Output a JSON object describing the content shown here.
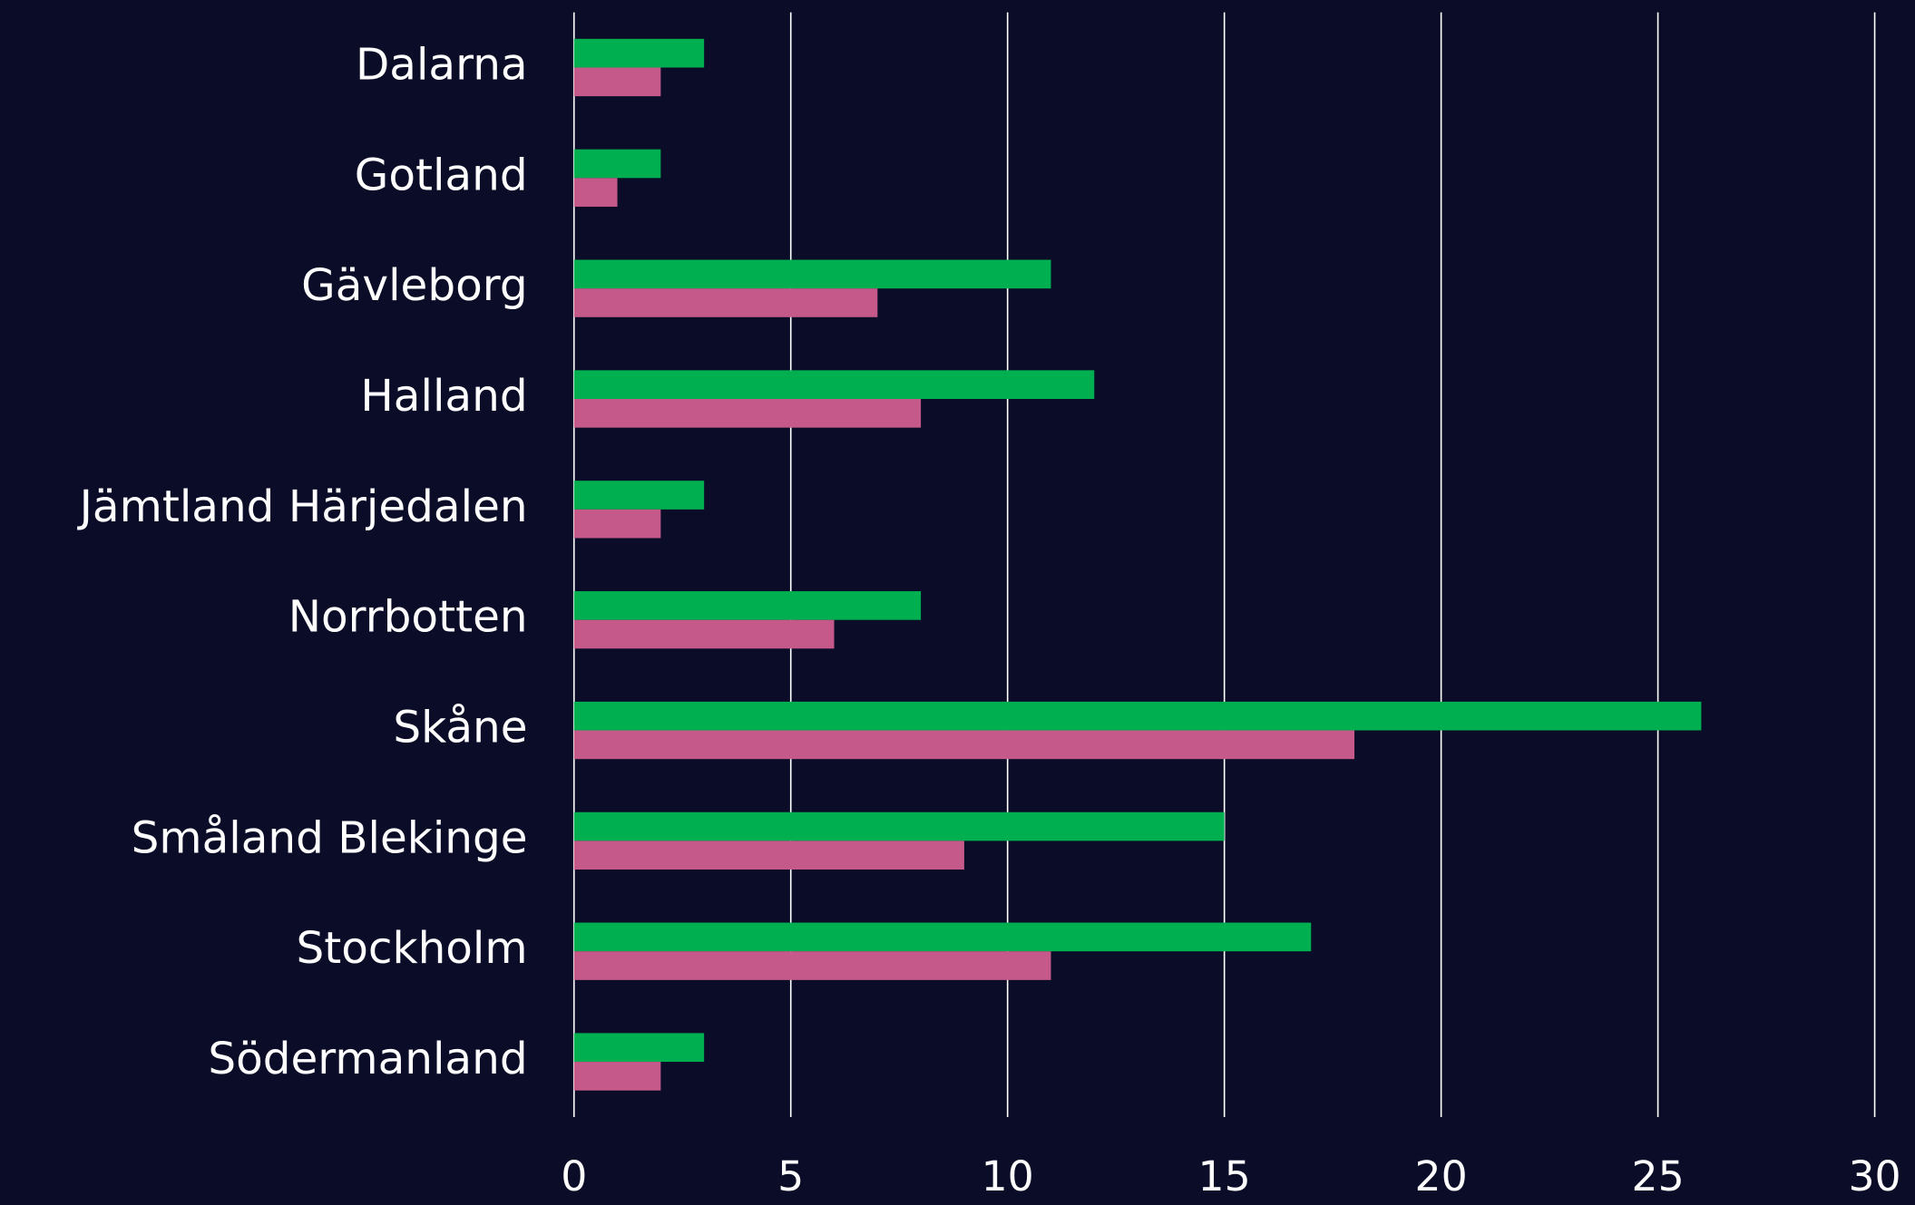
{
  "chart_data": {
    "type": "bar",
    "orientation": "horizontal",
    "categories": [
      "Dalarna",
      "Gotland",
      "Gävleborg",
      "Halland",
      "Jämtland Härjedalen",
      "Norrbotten",
      "Skåne",
      "Småland Blekinge",
      "Stockholm",
      "Södermanland"
    ],
    "series": [
      {
        "color": "#00b050",
        "values": [
          3,
          2,
          11,
          12,
          3,
          8,
          26,
          15,
          17,
          3
        ]
      },
      {
        "color": "#c55a8a",
        "values": [
          2,
          1,
          7,
          8,
          2,
          6,
          18,
          9,
          11,
          2
        ]
      }
    ],
    "xlim": [
      0,
      30
    ],
    "xticks": [
      0,
      5,
      10,
      15,
      20,
      25,
      30
    ],
    "grid": true
  }
}
